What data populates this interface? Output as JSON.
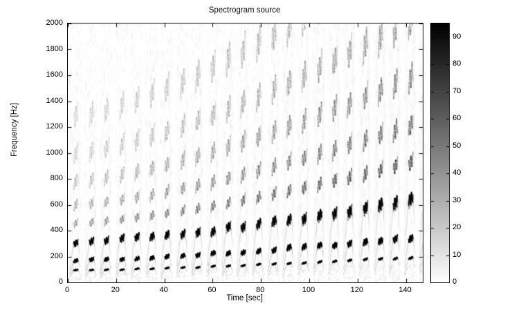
{
  "chart_data": {
    "type": "heatmap",
    "subtype": "spectrogram",
    "title": "Spectrogram source",
    "xlabel": "Time [sec]",
    "ylabel": "Frequency [Hz]",
    "xlim": [
      0,
      147
    ],
    "ylim": [
      0,
      2000
    ],
    "xticks": [
      0,
      20,
      40,
      60,
      80,
      100,
      120,
      140
    ],
    "yticks": [
      0,
      200,
      400,
      600,
      800,
      1000,
      1200,
      1400,
      1600,
      1800,
      2000
    ],
    "grid": false,
    "legend": "none",
    "background_value": 0,
    "colorbar": {
      "position": "right",
      "min": 0,
      "max": 95,
      "ticks": [
        0,
        10,
        20,
        30,
        40,
        50,
        60,
        70,
        80,
        90
      ],
      "colormap": "white-to-black"
    },
    "pattern": {
      "description": "Periodic train of harmonic chirp pulses (dark zigzag marks at low frequency rising slowly over time) on top of faint full-band vertical noise streaks",
      "pulse_period_sec": 6.3,
      "pulse_start_sec": 0.8,
      "pulse_count": 24,
      "pulse_duration_sec": 4.4,
      "base_freq_start_hz": 95,
      "base_freq_end_hz": 200,
      "freq_rise_exponent": 1.4,
      "main_harmonic_multipliers": [
        1,
        1.8,
        3.3
      ],
      "main_harmonic_intensity": [
        62,
        88,
        80
      ],
      "faint_harmonic_multipliers": [
        4.8,
        6.3,
        8.2,
        10.5,
        13.5
      ],
      "faint_harmonic_intensity": [
        16,
        13,
        11,
        9,
        8
      ],
      "noise_band_max_intensity": 7,
      "peak_intensity": 95
    }
  }
}
